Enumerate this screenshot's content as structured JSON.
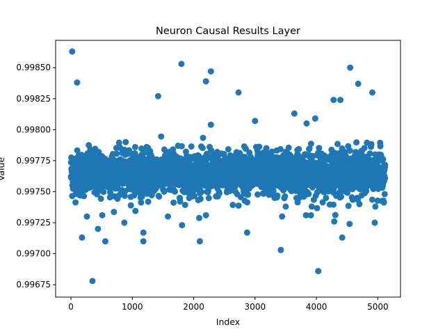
{
  "chart_data": {
    "type": "scatter",
    "title": "Neuron Causal Results Layer",
    "xlabel": "Index",
    "ylabel": "Value",
    "xlim": [
      -250,
      5370
    ],
    "ylim": [
      0.99665,
      0.99872
    ],
    "x_ticks": [
      0,
      1000,
      2000,
      3000,
      4000,
      5000
    ],
    "x_tick_labels": [
      "0",
      "1000",
      "2000",
      "3000",
      "4000",
      "5000"
    ],
    "y_ticks": [
      0.99675,
      0.997,
      0.99725,
      0.9975,
      0.99775,
      0.998,
      0.99825,
      0.9985
    ],
    "y_tick_labels": [
      "0.99675",
      "0.99700",
      "0.99725",
      "0.99750",
      "0.99775",
      "0.99800",
      "0.99825",
      "0.99850"
    ],
    "marker_color": "#1f77b4",
    "grid": false,
    "legend": "none",
    "n_points": 5120,
    "core_band": [
      0.9974,
      0.9979
    ],
    "outliers": [
      [
        20,
        0.99863
      ],
      [
        100,
        0.99838
      ],
      [
        1800,
        0.99853
      ],
      [
        2280,
        0.99847
      ],
      [
        2200,
        0.99839
      ],
      [
        2730,
        0.9983
      ],
      [
        1420,
        0.99827
      ],
      [
        4550,
        0.9985
      ],
      [
        4680,
        0.99837
      ],
      [
        4910,
        0.9983
      ],
      [
        4280,
        0.99824
      ],
      [
        4390,
        0.99824
      ],
      [
        3000,
        0.99807
      ],
      [
        3640,
        0.99813
      ],
      [
        3980,
        0.99809
      ],
      [
        3840,
        0.99805
      ],
      [
        2280,
        0.99804
      ],
      [
        180,
        0.99713
      ],
      [
        560,
        0.9971
      ],
      [
        1180,
        0.9971
      ],
      [
        1180,
        0.99717
      ],
      [
        2100,
        0.9971
      ],
      [
        2870,
        0.99717
      ],
      [
        3420,
        0.99703
      ],
      [
        4420,
        0.99713
      ],
      [
        4950,
        0.99725
      ],
      [
        4290,
        0.99726
      ],
      [
        4540,
        0.99724
      ],
      [
        870,
        0.99725
      ],
      [
        1810,
        0.99723
      ],
      [
        350,
        0.99678
      ],
      [
        4030,
        0.99686
      ],
      [
        440,
        0.9972
      ],
      [
        3830,
        0.99731
      ],
      [
        3910,
        0.99731
      ],
      [
        3440,
        0.9973
      ],
      [
        260,
        0.9973
      ],
      [
        510,
        0.99731
      ],
      [
        1580,
        0.9973
      ],
      [
        2200,
        0.99731
      ],
      [
        3500,
        0.99738
      ],
      [
        4700,
        0.9974
      ],
      [
        4960,
        0.99738
      ]
    ]
  }
}
